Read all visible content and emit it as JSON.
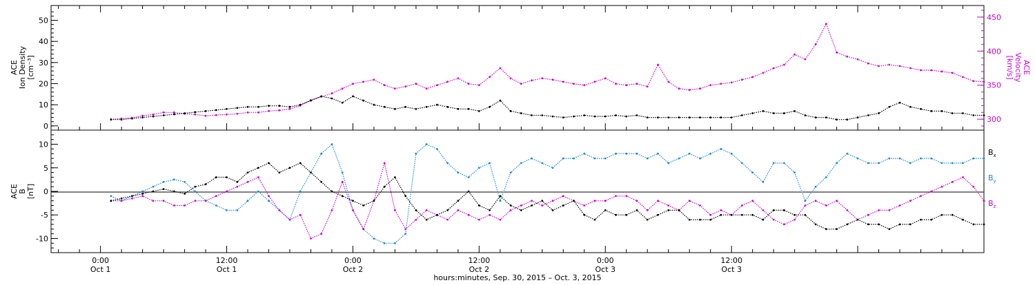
{
  "colors": {
    "ion_density": "#000000",
    "velocity": "#cc00cc",
    "bx": "#000000",
    "by": "#1a86d8",
    "bz": "#cc00cc"
  },
  "chart_data": [
    {
      "type": "scatter",
      "panel": "top",
      "ylabel_left": [
        "ACE",
        "Ion Density",
        "[cm⁻³]"
      ],
      "ylabel_right": [
        "ACE",
        "Velocity",
        "[km/s]"
      ],
      "x_unit": "hours since Sep 30 2015 00:00",
      "xlim": [
        19.3,
        108
      ],
      "ylim_left": [
        -2,
        57
      ],
      "ylim_right": [
        284,
        467
      ],
      "yticks_left": [
        "0",
        "10",
        "20",
        "30",
        "40",
        "50"
      ],
      "yticks_right": [
        "300",
        "350",
        "400",
        "450"
      ],
      "series": [
        {
          "key": "ion_density",
          "x": [
            25,
            26,
            27,
            28,
            29,
            30,
            31,
            32,
            33,
            34,
            35,
            36,
            37,
            38,
            39,
            40,
            41,
            42,
            43,
            44,
            45,
            46,
            47,
            48,
            49,
            50,
            51,
            52,
            53,
            54,
            55,
            56,
            57,
            58,
            59,
            60,
            61,
            62,
            63,
            64,
            65,
            66,
            67,
            68,
            69,
            70,
            71,
            72,
            73,
            74,
            75,
            76,
            77,
            78,
            79,
            80,
            81,
            82,
            83,
            84,
            85,
            86,
            87,
            88,
            89,
            90,
            91,
            92,
            93,
            94,
            95,
            96,
            97,
            98,
            99,
            100,
            101,
            102,
            103,
            104,
            105,
            106,
            107,
            108
          ],
          "y": [
            3,
            3,
            3.5,
            4,
            4.5,
            5,
            5.5,
            6,
            6.5,
            7,
            7.5,
            8,
            8.5,
            9,
            9,
            9.5,
            9.5,
            9,
            10,
            12,
            14,
            13,
            11,
            14,
            12,
            10,
            9,
            8,
            9,
            8,
            9,
            10,
            9,
            8,
            8,
            7,
            9,
            12,
            7,
            6,
            5,
            5,
            4.5,
            4,
            4.5,
            5,
            4.5,
            4.5,
            5,
            4.5,
            5,
            4,
            4,
            4,
            4,
            4,
            4,
            4,
            4,
            4,
            5,
            6,
            7,
            6,
            6,
            7,
            5,
            4,
            4,
            3,
            3,
            4,
            5,
            6,
            9,
            11,
            9,
            8,
            7,
            7,
            6,
            6,
            5,
            5
          ]
        },
        {
          "key": "velocity",
          "x": [
            25,
            26,
            27,
            28,
            29,
            30,
            31,
            32,
            33,
            34,
            35,
            36,
            37,
            38,
            39,
            40,
            41,
            42,
            43,
            44,
            45,
            46,
            47,
            48,
            49,
            50,
            51,
            52,
            53,
            54,
            55,
            56,
            57,
            58,
            59,
            60,
            61,
            62,
            63,
            64,
            65,
            66,
            67,
            68,
            69,
            70,
            71,
            72,
            73,
            74,
            75,
            76,
            77,
            78,
            79,
            80,
            81,
            82,
            83,
            84,
            85,
            86,
            87,
            88,
            89,
            90,
            91,
            92,
            93,
            94,
            95,
            96,
            97,
            98,
            99,
            100,
            101,
            102,
            103,
            104,
            105,
            106,
            107,
            108
          ],
          "y": [
            300,
            301,
            302,
            305,
            307,
            310,
            310,
            308,
            307,
            305,
            306,
            307,
            308,
            310,
            310,
            312,
            313,
            315,
            320,
            328,
            333,
            338,
            345,
            352,
            355,
            358,
            350,
            345,
            348,
            352,
            345,
            350,
            355,
            360,
            352,
            350,
            362,
            375,
            360,
            352,
            357,
            360,
            358,
            355,
            352,
            350,
            355,
            360,
            352,
            350,
            352,
            348,
            380,
            355,
            345,
            343,
            345,
            350,
            352,
            354,
            358,
            362,
            368,
            375,
            380,
            395,
            388,
            410,
            440,
            398,
            392,
            388,
            382,
            378,
            380,
            378,
            375,
            372,
            372,
            370,
            368,
            362,
            356,
            355
          ]
        }
      ]
    },
    {
      "type": "scatter",
      "panel": "bottom",
      "ylabel": [
        "ACE",
        "B",
        "[nT]"
      ],
      "xlim": [
        19.3,
        108
      ],
      "ylim": [
        -13,
        13
      ],
      "yticks": [
        "-10",
        "-5",
        "0",
        "5",
        "10"
      ],
      "legend": [
        "B",
        "B",
        "B"
      ],
      "legend_sub": [
        "x",
        "y",
        "z"
      ],
      "series": [
        {
          "key": "bx",
          "x": [
            25,
            26,
            27,
            28,
            29,
            30,
            31,
            32,
            33,
            34,
            35,
            36,
            37,
            38,
            39,
            40,
            41,
            42,
            43,
            44,
            45,
            46,
            47,
            48,
            49,
            50,
            51,
            52,
            53,
            54,
            55,
            56,
            57,
            58,
            59,
            60,
            61,
            62,
            63,
            64,
            65,
            66,
            67,
            68,
            69,
            70,
            71,
            72,
            73,
            74,
            75,
            76,
            77,
            78,
            79,
            80,
            81,
            82,
            83,
            84,
            85,
            86,
            87,
            88,
            89,
            90,
            91,
            92,
            93,
            94,
            95,
            96,
            97,
            98,
            99,
            100,
            101,
            102,
            103,
            104,
            105,
            106,
            107,
            108
          ],
          "y": [
            -2,
            -1.5,
            -1,
            -0.5,
            0,
            0.5,
            0,
            -0.5,
            1,
            1.5,
            3,
            3,
            2,
            4,
            5,
            6,
            4,
            5,
            6,
            4,
            2,
            0,
            -1,
            -2,
            -3,
            -2,
            1,
            3,
            -1,
            -4,
            -6,
            -5,
            -4,
            -2,
            0,
            -3,
            -4,
            -1,
            -3,
            -4,
            -3,
            -2,
            -4,
            -3,
            -2,
            -5,
            -6,
            -4,
            -5,
            -5,
            -4,
            -6,
            -5,
            -4,
            -4,
            -6,
            -6,
            -6,
            -5,
            -5,
            -5,
            -5,
            -6,
            -4,
            -4,
            -5,
            -5,
            -7,
            -8,
            -8,
            -7,
            -6,
            -7,
            -7,
            -8,
            -7,
            -7,
            -6,
            -6,
            -5,
            -5,
            -6,
            -7,
            -7
          ]
        },
        {
          "key": "by",
          "x": [
            25,
            26,
            27,
            28,
            29,
            30,
            31,
            32,
            33,
            34,
            35,
            36,
            37,
            38,
            39,
            40,
            41,
            42,
            43,
            44,
            45,
            46,
            47,
            48,
            49,
            50,
            51,
            52,
            53,
            54,
            55,
            56,
            57,
            58,
            59,
            60,
            61,
            62,
            63,
            64,
            65,
            66,
            67,
            68,
            69,
            70,
            71,
            72,
            73,
            74,
            75,
            76,
            77,
            78,
            79,
            80,
            81,
            82,
            83,
            84,
            85,
            86,
            87,
            88,
            89,
            90,
            91,
            92,
            93,
            94,
            95,
            96,
            97,
            98,
            99,
            100,
            101,
            102,
            103,
            104,
            105,
            106,
            107,
            108
          ],
          "y": [
            -1,
            -2,
            -1,
            0,
            1,
            2,
            2.5,
            2,
            0,
            -2,
            -3,
            -4,
            -4,
            -2,
            0,
            -2,
            -4,
            -6,
            0,
            4,
            8,
            10,
            4,
            -4,
            -8,
            -10,
            -11,
            -11,
            -9,
            8,
            10,
            9,
            6,
            4,
            3,
            5,
            6,
            -2,
            4,
            6,
            7,
            6,
            5,
            7,
            7,
            8,
            7,
            7,
            8,
            8,
            8,
            7,
            8,
            6,
            7,
            8,
            7,
            8,
            9,
            8,
            6,
            4,
            2,
            6,
            6,
            4,
            -2,
            1,
            3,
            6,
            8,
            7,
            6,
            6,
            7,
            7,
            6,
            7,
            7,
            6,
            6,
            6,
            7,
            7
          ]
        },
        {
          "key": "bz",
          "x": [
            25,
            26,
            27,
            28,
            29,
            30,
            31,
            32,
            33,
            34,
            35,
            36,
            37,
            38,
            39,
            40,
            41,
            42,
            43,
            44,
            45,
            46,
            47,
            48,
            49,
            50,
            51,
            52,
            53,
            54,
            55,
            56,
            57,
            58,
            59,
            60,
            61,
            62,
            63,
            64,
            65,
            66,
            67,
            68,
            69,
            70,
            71,
            72,
            73,
            74,
            75,
            76,
            77,
            78,
            79,
            80,
            81,
            82,
            83,
            84,
            85,
            86,
            87,
            88,
            89,
            90,
            91,
            92,
            93,
            94,
            95,
            96,
            97,
            98,
            99,
            100,
            101,
            102,
            103,
            104,
            105,
            106,
            107,
            108
          ],
          "y": [
            -2,
            -2,
            -1.5,
            -1,
            -2,
            -2,
            -3,
            -3,
            -2,
            -2,
            -1,
            0,
            1,
            2,
            3,
            -1,
            -4,
            -6,
            -5,
            -10,
            -9,
            -4,
            2,
            -4,
            -8,
            -2,
            6,
            -4,
            -8,
            -6,
            -4,
            -5,
            -6,
            -4,
            -5,
            -6,
            -5,
            -6,
            -4,
            -3,
            -2,
            -3,
            -2,
            -1,
            -2,
            -3,
            -2,
            -2,
            -1,
            -1,
            -2,
            -4,
            -2,
            -3,
            -4,
            -2,
            -3,
            -5,
            -4,
            -5,
            -3,
            -2,
            -4,
            -6,
            -7,
            -6,
            -3,
            -2,
            -3,
            -2,
            -4,
            -6,
            -5,
            -4,
            -4,
            -3,
            -2,
            -1,
            0,
            1,
            2,
            3,
            1,
            -2
          ]
        }
      ]
    },
    {
      "type": "axis",
      "panel": "shared-x",
      "xlabel": "hours:minutes, Sep. 30, 2015 – Oct. 3, 2015",
      "xticks": [
        {
          "hour": 24,
          "time": "0:00",
          "date": "Oct 1"
        },
        {
          "hour": 36,
          "time": "12:00",
          "date": "Oct 1"
        },
        {
          "hour": 48,
          "time": "0:00",
          "date": "Oct 2"
        },
        {
          "hour": 60,
          "time": "12:00",
          "date": "Oct 2"
        },
        {
          "hour": 72,
          "time": "0:00",
          "date": "Oct 3"
        },
        {
          "hour": 84,
          "time": "12:00",
          "date": "Oct 3"
        }
      ]
    }
  ]
}
